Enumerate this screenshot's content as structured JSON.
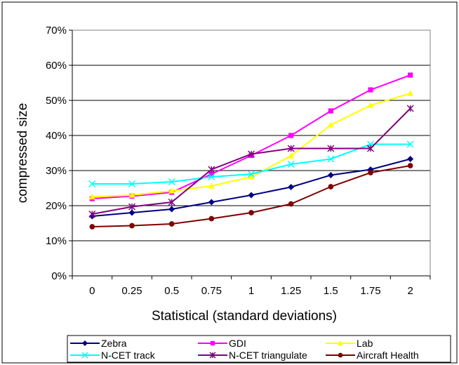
{
  "chart_data": {
    "type": "line",
    "title": "",
    "xlabel": "Statistical (standard deviations)",
    "ylabel": "compressed size",
    "categories": [
      "0",
      "0.25",
      "0.5",
      "0.75",
      "1",
      "1.25",
      "1.5",
      "1.75",
      "2"
    ],
    "ylim": [
      0,
      70
    ],
    "yticks": [
      "0%",
      "10%",
      "20%",
      "30%",
      "40%",
      "50%",
      "60%",
      "70%"
    ],
    "grid": "horizontal",
    "legend_position": "bottom",
    "series": [
      {
        "name": "Zebra",
        "color": "#000080",
        "marker": "diamond",
        "values": [
          17,
          18,
          19,
          21,
          23,
          25.3,
          28.7,
          30.3,
          33.3
        ]
      },
      {
        "name": "GDI",
        "color": "#FF00FF",
        "marker": "square",
        "values": [
          22,
          22.7,
          23.8,
          29,
          34.3,
          40,
          47,
          53,
          57.2
        ]
      },
      {
        "name": "Lab",
        "color": "#FFFF00",
        "marker": "triangle",
        "values": [
          22.5,
          23,
          24.2,
          25.6,
          28.2,
          34.2,
          43,
          48.6,
          52
        ]
      },
      {
        "name": "N-CET track",
        "color": "#00FFFF",
        "marker": "x",
        "values": [
          26.2,
          26.2,
          26.8,
          28.2,
          29,
          31.8,
          33.3,
          37.5,
          37.5
        ]
      },
      {
        "name": "N-CET triangulate",
        "color": "#800080",
        "marker": "star",
        "values": [
          17.6,
          19.7,
          21,
          30.3,
          34.7,
          36.3,
          36.3,
          36.3,
          47.7
        ]
      },
      {
        "name": "Aircraft Health",
        "color": "#800000",
        "marker": "circle",
        "values": [
          14,
          14.3,
          14.8,
          16.3,
          18,
          20.5,
          25.4,
          29.4,
          31.4
        ]
      }
    ]
  }
}
